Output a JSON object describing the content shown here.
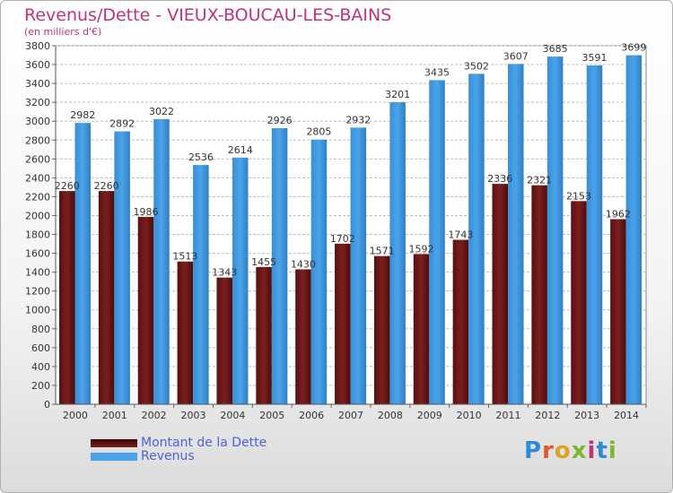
{
  "chart_data": {
    "type": "bar",
    "title": "Revenus/Dette - VIEUX-BOUCAU-LES-BAINS",
    "subtitle": "(en milliers d'€)",
    "categories": [
      "2000",
      "2001",
      "2002",
      "2003",
      "2004",
      "2005",
      "2006",
      "2007",
      "2008",
      "2009",
      "2010",
      "2011",
      "2012",
      "2013",
      "2014"
    ],
    "series": [
      {
        "name": "Montant de la Dette",
        "color": "#7a1f1f",
        "values": [
          2260,
          2260,
          1986,
          1513,
          1343,
          1455,
          1430,
          1702,
          1571,
          1592,
          1743,
          2336,
          2321,
          2153,
          1962
        ],
        "labels": [
          "2260",
          "2260",
          "1986",
          "1513",
          "1343",
          "1455",
          "1430",
          "1702",
          "1571",
          "1592",
          "1743",
          "2336",
          "2321",
          "2153",
          "1962"
        ]
      },
      {
        "name": "Revenus",
        "color": "#4aa3e8",
        "values": [
          2982,
          2892,
          3022,
          2536,
          2614,
          2926,
          2805,
          2932,
          3201,
          3435,
          3502,
          3607,
          3685,
          3591,
          3699
        ],
        "labels": [
          "2982",
          "2892",
          "3022",
          "2536",
          "2614",
          "2926",
          "2805",
          "2932",
          "3201",
          "3435",
          "3502",
          "3607",
          "3685",
          "3591",
          "3699"
        ]
      }
    ],
    "ylim": [
      0,
      3800
    ],
    "yticks": [
      "0",
      "200",
      "400",
      "600",
      "800",
      "1000",
      "1200",
      "1400",
      "1600",
      "1800",
      "2000",
      "2200",
      "2400",
      "2600",
      "2800",
      "3000",
      "3200",
      "3400",
      "3600",
      "3800"
    ],
    "grid": true,
    "legend_position": "bottom-left"
  },
  "logo": {
    "letters": [
      "P",
      "r",
      "o",
      "x",
      "i",
      "t",
      "i"
    ],
    "colors": [
      "#2e8bd8",
      "#e05a2b",
      "#e0a020",
      "#7ab82e",
      "#c0337a",
      "#2e8bd8",
      "#7ab82e"
    ]
  }
}
